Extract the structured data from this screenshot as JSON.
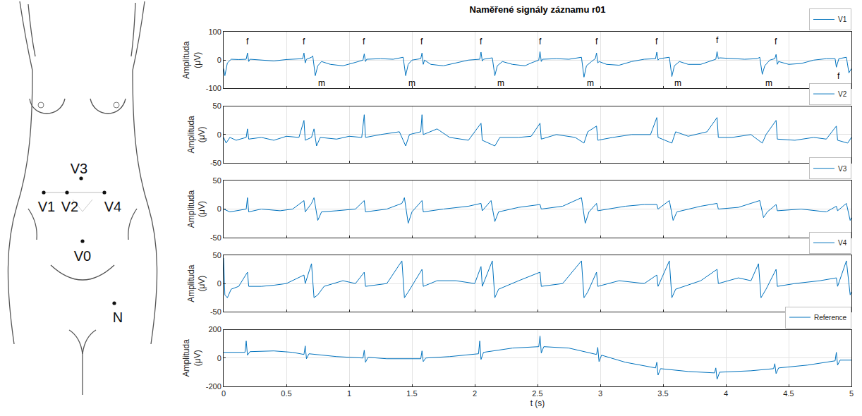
{
  "diagram": {
    "electrodes": [
      "V3",
      "V1",
      "V2",
      "V4",
      "V0",
      "N"
    ]
  },
  "chart_data": [
    {
      "type": "line",
      "title": "Naměřené signály záznamu r01",
      "ylabel": "Amplituda (μV)",
      "x": [
        0,
        0.01,
        0.03,
        0.06,
        0.12,
        0.18,
        0.19,
        0.2,
        0.21,
        0.3,
        0.4,
        0.5,
        0.6,
        0.63,
        0.64,
        0.65,
        0.66,
        0.7,
        0.71,
        0.73,
        0.75,
        0.78,
        0.85,
        0.95,
        1.05,
        1.11,
        1.12,
        1.13,
        1.14,
        1.25,
        1.35,
        1.42,
        1.43,
        1.45,
        1.47,
        1.5,
        1.57,
        1.58,
        1.59,
        1.6,
        1.65,
        1.75,
        1.85,
        1.95,
        2.04,
        2.05,
        2.06,
        2.07,
        2.14,
        2.16,
        2.18,
        2.22,
        2.3,
        2.4,
        2.45,
        2.51,
        2.52,
        2.53,
        2.54,
        2.65,
        2.75,
        2.85,
        2.87,
        2.89,
        2.93,
        2.96,
        2.97,
        2.98,
        2.99,
        3.05,
        3.15,
        3.25,
        3.35,
        3.44,
        3.45,
        3.46,
        3.47,
        3.55,
        3.57,
        3.59,
        3.63,
        3.7,
        3.8,
        3.88,
        3.92,
        3.93,
        3.94,
        3.95,
        4.05,
        4.15,
        4.25,
        4.27,
        4.29,
        4.31,
        4.35,
        4.39,
        4.4,
        4.41,
        4.42,
        4.5,
        4.6,
        4.7,
        4.8,
        4.87,
        4.88,
        4.89,
        4.9,
        4.96,
        4.98,
        5
      ],
      "series": [
        {
          "name": "V1",
          "color": "#0072bd",
          "values": [
            -30,
            -55,
            -10,
            3,
            2,
            3,
            25,
            -5,
            3,
            0,
            -3,
            2,
            5,
            5,
            25,
            -10,
            3,
            10,
            15,
            -55,
            -20,
            -5,
            -15,
            -20,
            -8,
            0,
            22,
            -5,
            3,
            5,
            3,
            8,
            10,
            -55,
            -15,
            0,
            5,
            25,
            -15,
            0,
            -15,
            -20,
            -10,
            0,
            3,
            28,
            -3,
            3,
            8,
            -55,
            -20,
            -5,
            -15,
            -20,
            -10,
            0,
            30,
            -5,
            3,
            5,
            3,
            10,
            -60,
            -20,
            -5,
            5,
            25,
            -10,
            -5,
            -15,
            -18,
            -5,
            3,
            5,
            28,
            0,
            5,
            10,
            -58,
            -20,
            -5,
            -15,
            -15,
            -3,
            3,
            30,
            5,
            8,
            5,
            3,
            5,
            10,
            -50,
            -20,
            0,
            5,
            20,
            -15,
            -5,
            -15,
            -12,
            0,
            5,
            5,
            -25,
            -10,
            5,
            10,
            -45,
            -30
          ]
        }
      ],
      "xlim": [
        0,
        5
      ],
      "xticks": [
        0,
        0.5,
        1,
        1.5,
        2,
        2.5,
        3,
        3.5,
        4,
        4.5,
        5
      ],
      "ylim": [
        -100,
        100
      ],
      "yticks": [
        -100,
        0,
        100
      ],
      "grid": true,
      "legend": "top right",
      "tick_labels": "y",
      "annotations": [
        {
          "text": "f",
          "x": 0.19,
          "y": 42
        },
        {
          "text": "f",
          "x": 0.64,
          "y": 42
        },
        {
          "text": "f",
          "x": 1.12,
          "y": 42
        },
        {
          "text": "f",
          "x": 1.58,
          "y": 42
        },
        {
          "text": "f",
          "x": 2.05,
          "y": 42
        },
        {
          "text": "f",
          "x": 2.52,
          "y": 42
        },
        {
          "text": "f",
          "x": 2.97,
          "y": 42
        },
        {
          "text": "f",
          "x": 3.45,
          "y": 42
        },
        {
          "text": "f",
          "x": 3.93,
          "y": 48
        },
        {
          "text": "f",
          "x": 4.4,
          "y": 42
        },
        {
          "text": "f",
          "x": 4.9,
          "y": -35
        },
        {
          "text": "m",
          "x": 0.78,
          "y": -60
        },
        {
          "text": "m",
          "x": 1.5,
          "y": -60
        },
        {
          "text": "m",
          "x": 2.21,
          "y": -60
        },
        {
          "text": "m",
          "x": 2.92,
          "y": -60
        },
        {
          "text": "m",
          "x": 3.62,
          "y": -60
        },
        {
          "text": "m",
          "x": 4.34,
          "y": -60
        }
      ]
    },
    {
      "type": "line",
      "ylabel": "Amplituda (μV)",
      "x": [
        0,
        0.02,
        0.05,
        0.1,
        0.18,
        0.19,
        0.2,
        0.3,
        0.4,
        0.5,
        0.6,
        0.64,
        0.65,
        0.7,
        0.72,
        0.74,
        0.77,
        0.9,
        1,
        1.1,
        1.12,
        1.13,
        1.25,
        1.4,
        1.45,
        1.48,
        1.57,
        1.58,
        1.59,
        1.7,
        1.8,
        1.95,
        2.05,
        2.06,
        2.16,
        2.2,
        2.35,
        2.45,
        2.52,
        2.53,
        2.65,
        2.8,
        2.87,
        2.9,
        2.97,
        2.98,
        3.1,
        3.25,
        3.4,
        3.45,
        3.46,
        3.57,
        3.6,
        3.7,
        3.85,
        3.93,
        3.94,
        4.05,
        4.2,
        4.29,
        4.32,
        4.4,
        4.41,
        4.55,
        4.7,
        4.8,
        4.88,
        4.89,
        4.97,
        5
      ],
      "series": [
        {
          "name": "V2",
          "color": "#0072bd",
          "values": [
            -5,
            -15,
            -5,
            -10,
            -5,
            10,
            -8,
            -5,
            -10,
            -3,
            -5,
            25,
            -10,
            -5,
            10,
            -20,
            -5,
            -8,
            -3,
            -5,
            35,
            -5,
            0,
            5,
            -20,
            0,
            5,
            35,
            0,
            10,
            -5,
            -10,
            20,
            -10,
            -20,
            -5,
            -5,
            -3,
            20,
            -8,
            0,
            -5,
            -15,
            5,
            15,
            -10,
            -5,
            0,
            0,
            30,
            -5,
            -15,
            5,
            -3,
            5,
            30,
            -5,
            -5,
            0,
            -15,
            0,
            25,
            -8,
            -10,
            -5,
            -8,
            15,
            -10,
            -15,
            -5
          ]
        }
      ],
      "xlim": [
        0,
        5
      ],
      "xticks": [
        0,
        0.5,
        1,
        1.5,
        2,
        2.5,
        3,
        3.5,
        4,
        4.5,
        5
      ],
      "ylim": [
        -50,
        50
      ],
      "yticks": [
        -50,
        0,
        50
      ],
      "grid": true,
      "legend": "top right",
      "tick_labels": "y"
    },
    {
      "type": "line",
      "ylabel": "Amplituda (μV)",
      "x": [
        0,
        0.05,
        0.18,
        0.19,
        0.2,
        0.3,
        0.45,
        0.55,
        0.64,
        0.65,
        0.7,
        0.72,
        0.75,
        0.78,
        0.9,
        1.05,
        1.12,
        1.13,
        1.3,
        1.42,
        1.44,
        1.47,
        1.5,
        1.58,
        1.59,
        1.75,
        1.95,
        2.05,
        2.06,
        2.13,
        2.16,
        2.19,
        2.35,
        2.52,
        2.53,
        2.7,
        2.85,
        2.88,
        2.91,
        2.97,
        2.98,
        3.2,
        3.35,
        3.45,
        3.46,
        3.55,
        3.58,
        3.61,
        3.8,
        3.93,
        3.94,
        4.1,
        4.27,
        4.3,
        4.33,
        4.4,
        4.41,
        4.6,
        4.8,
        4.88,
        4.89,
        4.96,
        4.99,
        5
      ],
      "series": [
        {
          "name": "V3",
          "color": "#0072bd",
          "values": [
            0,
            -5,
            0,
            20,
            -5,
            0,
            -3,
            0,
            15,
            -5,
            10,
            20,
            -20,
            -5,
            -3,
            0,
            15,
            -5,
            0,
            10,
            20,
            -25,
            -5,
            15,
            -5,
            0,
            5,
            10,
            -3,
            15,
            -22,
            -5,
            3,
            8,
            0,
            5,
            20,
            -25,
            -5,
            10,
            -3,
            5,
            8,
            8,
            0,
            15,
            -20,
            -5,
            5,
            10,
            0,
            3,
            15,
            -15,
            -5,
            8,
            -3,
            0,
            -5,
            5,
            -3,
            10,
            -20,
            -15
          ]
        }
      ],
      "xlim": [
        0,
        5
      ],
      "xticks": [
        0,
        0.5,
        1,
        1.5,
        2,
        2.5,
        3,
        3.5,
        4,
        4.5,
        5
      ],
      "ylim": [
        -50,
        50
      ],
      "yticks": [
        -50,
        0,
        50
      ],
      "grid": true,
      "legend": "top right",
      "tick_labels": "y"
    },
    {
      "type": "line",
      "ylabel": "Amplituda (μV)",
      "x": [
        0,
        0.01,
        0.03,
        0.06,
        0.12,
        0.19,
        0.2,
        0.3,
        0.4,
        0.5,
        0.64,
        0.65,
        0.7,
        0.72,
        0.75,
        0.8,
        0.95,
        1.05,
        1.12,
        1.13,
        1.3,
        1.42,
        1.44,
        1.47,
        1.58,
        1.59,
        1.7,
        1.85,
        2,
        2.05,
        2.06,
        2.14,
        2.16,
        2.19,
        2.35,
        2.52,
        2.53,
        2.7,
        2.85,
        2.87,
        2.9,
        2.97,
        2.98,
        3.15,
        3.35,
        3.45,
        3.46,
        3.55,
        3.57,
        3.6,
        3.8,
        3.93,
        3.94,
        4.1,
        4.2,
        4.26,
        4.28,
        4.32,
        4.4,
        4.41,
        4.55,
        4.75,
        4.88,
        4.89,
        4.96,
        4.99,
        5
      ],
      "series": [
        {
          "name": "V4",
          "color": "#0072bd",
          "values": [
            45,
            -20,
            -25,
            -10,
            -5,
            20,
            -5,
            -5,
            -3,
            0,
            15,
            0,
            35,
            -25,
            -20,
            -5,
            5,
            0,
            20,
            -5,
            0,
            40,
            -25,
            -15,
            25,
            -5,
            5,
            5,
            0,
            30,
            -5,
            40,
            -25,
            -10,
            5,
            20,
            -5,
            0,
            40,
            -25,
            -15,
            20,
            -5,
            5,
            0,
            15,
            -5,
            40,
            -25,
            -10,
            5,
            25,
            0,
            10,
            5,
            35,
            -25,
            -10,
            25,
            -5,
            0,
            5,
            10,
            -5,
            40,
            -20,
            -15
          ]
        }
      ],
      "xlim": [
        0,
        5
      ],
      "xticks": [
        0,
        0.5,
        1,
        1.5,
        2,
        2.5,
        3,
        3.5,
        4,
        4.5,
        5
      ],
      "ylim": [
        -50,
        50
      ],
      "yticks": [
        -50,
        0,
        50
      ],
      "grid": true,
      "legend": "top right",
      "tick_labels": "y"
    },
    {
      "type": "line",
      "ylabel": "Amplituda (μV)",
      "xlabel": "t (s)",
      "x": [
        0,
        0.17,
        0.18,
        0.19,
        0.21,
        0.4,
        0.55,
        0.64,
        0.65,
        0.66,
        0.68,
        0.9,
        1.11,
        1.12,
        1.13,
        1.15,
        1.3,
        1.57,
        1.58,
        1.59,
        1.61,
        1.8,
        2.03,
        2.04,
        2.05,
        2.07,
        2.3,
        2.51,
        2.52,
        2.53,
        2.55,
        2.75,
        2.97,
        2.98,
        2.99,
        3.01,
        3.2,
        3.44,
        3.45,
        3.46,
        3.48,
        3.7,
        3.91,
        3.92,
        3.93,
        3.95,
        4.2,
        4.38,
        4.39,
        4.4,
        4.42,
        4.65,
        4.87,
        4.88,
        4.89,
        4.91,
        5
      ],
      "series": [
        {
          "name": "Reference",
          "color": "#0072bd",
          "values": [
            40,
            40,
            120,
            20,
            45,
            50,
            40,
            25,
            85,
            -5,
            30,
            10,
            0,
            55,
            -30,
            5,
            -5,
            -5,
            50,
            -25,
            0,
            10,
            30,
            120,
            -10,
            40,
            70,
            80,
            155,
            35,
            80,
            70,
            25,
            75,
            -25,
            20,
            -30,
            -70,
            -30,
            -120,
            -75,
            -95,
            -105,
            -70,
            -150,
            -100,
            -90,
            -75,
            -40,
            -110,
            -70,
            -50,
            -20,
            40,
            -50,
            -15,
            -15
          ]
        }
      ],
      "xlim": [
        0,
        5
      ],
      "xticks": [
        0,
        0.5,
        1,
        1.5,
        2,
        2.5,
        3,
        3.5,
        4,
        4.5,
        5
      ],
      "ylim": [
        -200,
        200
      ],
      "yticks": [
        -200,
        0,
        200
      ],
      "grid": true,
      "legend": "top right"
    }
  ]
}
